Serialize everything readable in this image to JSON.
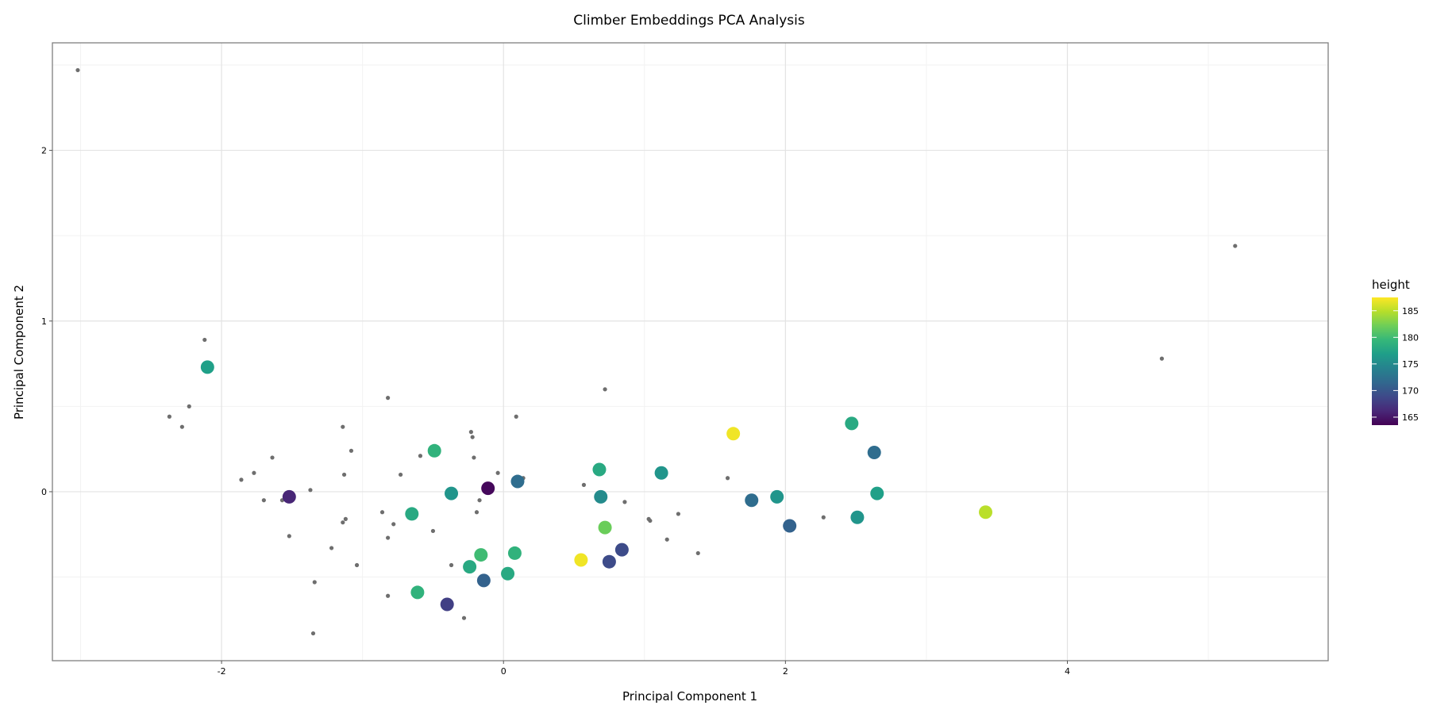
{
  "chart_data": {
    "type": "scatter",
    "title": "Climber Embeddings PCA Analysis",
    "xlabel": "Principal Component 1",
    "ylabel": "Principal Component 2",
    "xlim": [
      -3.2,
      5.85
    ],
    "ylim": [
      -0.99,
      2.63
    ],
    "x_ticks": [
      -2,
      0,
      2,
      4
    ],
    "y_ticks": [
      0,
      1,
      2
    ],
    "x_tick_labels": [
      "-2",
      "0",
      "2",
      "4"
    ],
    "y_tick_labels": [
      "0",
      "1",
      "2"
    ],
    "grid": true,
    "legend": {
      "title": "height",
      "placement": "right",
      "min": 163.5,
      "max": 187.5,
      "ticks": [
        165,
        170,
        175,
        180,
        185
      ],
      "tick_labels": [
        "165",
        "170",
        "175",
        "180",
        "185"
      ],
      "colors": [
        "#440154",
        "#482878",
        "#3e4989",
        "#31688e",
        "#26828e",
        "#1f9e89",
        "#35b779",
        "#6ece58",
        "#b5de2b",
        "#fde725"
      ]
    },
    "series": [
      {
        "values": [
          {
            "x": -2.1,
            "y": 0.73,
            "height": 177
          },
          {
            "x": -1.52,
            "y": -0.03,
            "height": 166
          },
          {
            "x": -0.49,
            "y": 0.24,
            "height": 179
          },
          {
            "x": -0.37,
            "y": -0.01,
            "height": 176
          },
          {
            "x": -0.65,
            "y": -0.13,
            "height": 178
          },
          {
            "x": -0.11,
            "y": 0.02,
            "height": 164
          },
          {
            "x": 0.1,
            "y": 0.06,
            "height": 172
          },
          {
            "x": -0.61,
            "y": -0.59,
            "height": 179
          },
          {
            "x": -0.4,
            "y": -0.66,
            "height": 168
          },
          {
            "x": -0.24,
            "y": -0.44,
            "height": 178
          },
          {
            "x": -0.16,
            "y": -0.37,
            "height": 180
          },
          {
            "x": -0.14,
            "y": -0.52,
            "height": 171
          },
          {
            "x": 0.03,
            "y": -0.48,
            "height": 178
          },
          {
            "x": 0.08,
            "y": -0.36,
            "height": 179
          },
          {
            "x": 0.55,
            "y": -0.4,
            "height": 187
          },
          {
            "x": 0.68,
            "y": 0.13,
            "height": 178
          },
          {
            "x": 0.69,
            "y": -0.03,
            "height": 175
          },
          {
            "x": 0.72,
            "y": -0.21,
            "height": 182
          },
          {
            "x": 0.75,
            "y": -0.41,
            "height": 169
          },
          {
            "x": 0.84,
            "y": -0.34,
            "height": 169
          },
          {
            "x": 1.12,
            "y": 0.11,
            "height": 176
          },
          {
            "x": 1.63,
            "y": 0.34,
            "height": 187
          },
          {
            "x": 1.76,
            "y": -0.05,
            "height": 172
          },
          {
            "x": 1.94,
            "y": -0.03,
            "height": 176
          },
          {
            "x": 2.03,
            "y": -0.2,
            "height": 171
          },
          {
            "x": 2.47,
            "y": 0.4,
            "height": 178
          },
          {
            "x": 2.51,
            "y": -0.15,
            "height": 176
          },
          {
            "x": 2.63,
            "y": 0.23,
            "height": 172
          },
          {
            "x": 2.65,
            "y": -0.01,
            "height": 177
          },
          {
            "x": 3.42,
            "y": -0.12,
            "height": 185
          }
        ]
      },
      {
        "values": [
          {
            "x": -3.02,
            "y": 2.47
          },
          {
            "x": -2.12,
            "y": 0.89
          },
          {
            "x": -2.23,
            "y": 0.5
          },
          {
            "x": -2.37,
            "y": 0.44
          },
          {
            "x": -2.28,
            "y": 0.38
          },
          {
            "x": -1.64,
            "y": 0.2
          },
          {
            "x": -1.77,
            "y": 0.11
          },
          {
            "x": -1.86,
            "y": 0.07
          },
          {
            "x": -1.7,
            "y": -0.05
          },
          {
            "x": -1.57,
            "y": -0.05
          },
          {
            "x": -1.37,
            "y": 0.01
          },
          {
            "x": -1.52,
            "y": -0.26
          },
          {
            "x": -1.22,
            "y": -0.33
          },
          {
            "x": -1.34,
            "y": -0.53
          },
          {
            "x": -1.35,
            "y": -0.83
          },
          {
            "x": -1.14,
            "y": 0.38
          },
          {
            "x": -1.08,
            "y": 0.24
          },
          {
            "x": -1.13,
            "y": 0.1
          },
          {
            "x": -1.12,
            "y": -0.16
          },
          {
            "x": -1.14,
            "y": -0.18
          },
          {
            "x": -1.04,
            "y": -0.43
          },
          {
            "x": -0.82,
            "y": 0.55
          },
          {
            "x": -0.73,
            "y": 0.1
          },
          {
            "x": -0.86,
            "y": -0.12
          },
          {
            "x": -0.78,
            "y": -0.19
          },
          {
            "x": -0.82,
            "y": -0.27
          },
          {
            "x": -0.82,
            "y": -0.61
          },
          {
            "x": -0.59,
            "y": 0.21
          },
          {
            "x": -0.5,
            "y": -0.23
          },
          {
            "x": -0.37,
            "y": -0.43
          },
          {
            "x": -0.28,
            "y": -0.74
          },
          {
            "x": -0.23,
            "y": 0.35
          },
          {
            "x": -0.22,
            "y": 0.32
          },
          {
            "x": -0.21,
            "y": 0.2
          },
          {
            "x": -0.19,
            "y": -0.12
          },
          {
            "x": -0.17,
            "y": -0.05
          },
          {
            "x": -0.04,
            "y": 0.11
          },
          {
            "x": 0.09,
            "y": 0.44
          },
          {
            "x": 0.14,
            "y": 0.08
          },
          {
            "x": 0.57,
            "y": 0.04
          },
          {
            "x": 0.72,
            "y": 0.6
          },
          {
            "x": 0.86,
            "y": -0.06
          },
          {
            "x": 1.03,
            "y": -0.16
          },
          {
            "x": 1.04,
            "y": -0.17
          },
          {
            "x": 1.16,
            "y": -0.28
          },
          {
            "x": 1.24,
            "y": -0.13
          },
          {
            "x": 1.38,
            "y": -0.36
          },
          {
            "x": 1.59,
            "y": 0.08
          },
          {
            "x": 2.27,
            "y": -0.15
          },
          {
            "x": 4.67,
            "y": 0.78
          },
          {
            "x": 5.19,
            "y": 1.44
          }
        ]
      }
    ]
  }
}
